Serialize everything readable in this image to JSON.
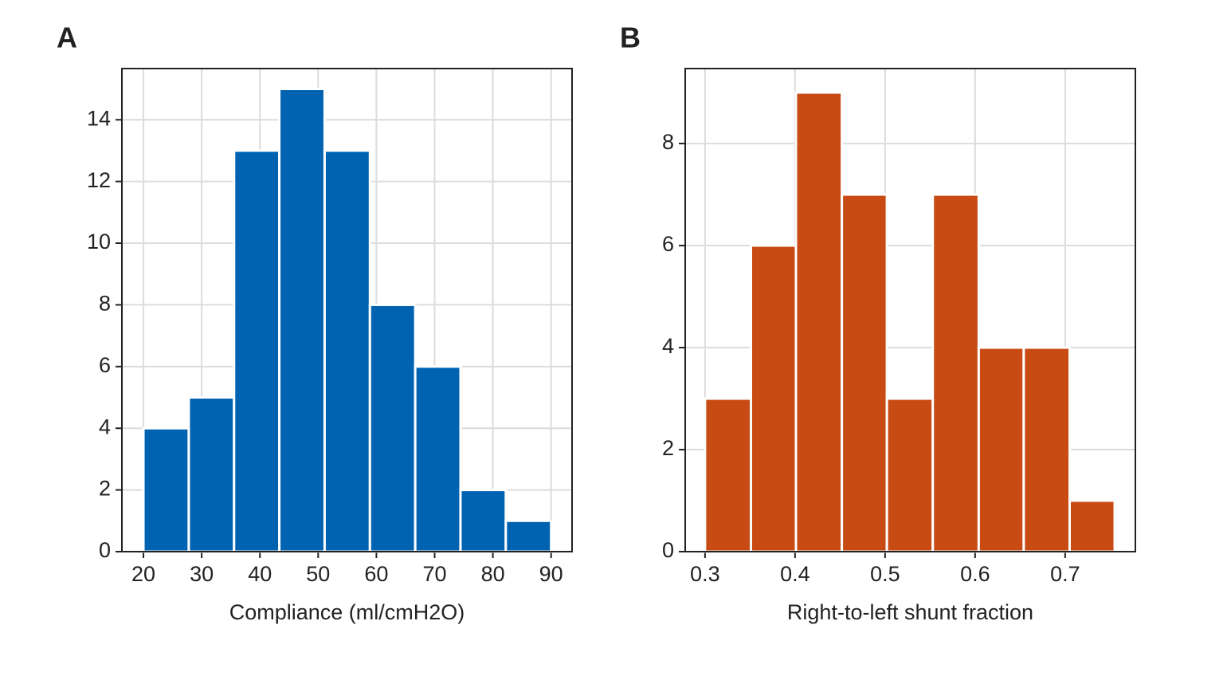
{
  "chart_data": [
    {
      "type": "histogram",
      "panel": "A",
      "xlabel": "Compliance (ml/cmH2O)",
      "bins": [
        20,
        27.78,
        35.56,
        43.33,
        51.11,
        58.89,
        66.67,
        74.44,
        82.22,
        90
      ],
      "values": [
        4,
        5,
        13,
        15,
        13,
        8,
        6,
        2,
        1
      ],
      "color": "#0063b1",
      "xlim": [
        16.3,
        93.6
      ],
      "xticks": [
        20,
        30,
        40,
        50,
        60,
        70,
        80,
        90
      ],
      "ylim": [
        0,
        15.66
      ],
      "yticks": [
        0,
        2,
        4,
        6,
        8,
        10,
        12,
        14
      ],
      "grid": true
    },
    {
      "type": "histogram",
      "panel": "B",
      "xlabel": "Right-to-left shunt fraction",
      "bins": [
        0.3,
        0.351,
        0.401,
        0.452,
        0.502,
        0.553,
        0.604,
        0.654,
        0.705,
        0.755
      ],
      "values": [
        3,
        6,
        9,
        7,
        3,
        7,
        4,
        4,
        1
      ],
      "color": "#c84b14",
      "xlim": [
        0.278,
        0.778
      ],
      "xticks": [
        0.3,
        0.4,
        0.5,
        0.6,
        0.7
      ],
      "ylim": [
        0,
        9.47
      ],
      "yticks": [
        0,
        2,
        4,
        6,
        8
      ],
      "grid": true
    }
  ]
}
